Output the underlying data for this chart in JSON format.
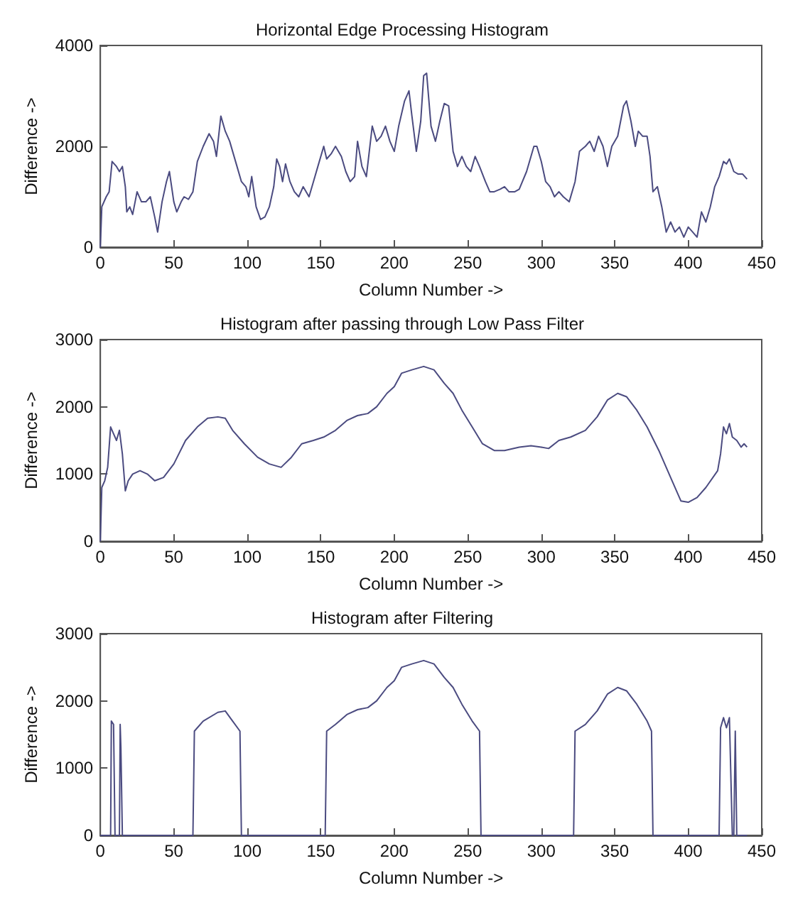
{
  "chart_data": [
    {
      "type": "line",
      "title": "Horizontal Edge Processing Histogram",
      "xlabel": "Column Number ->",
      "ylabel": "Difference ->",
      "grid": false,
      "marker": "none",
      "line_style": "solid",
      "xlim": [
        0,
        450
      ],
      "xticks": [
        0,
        50,
        100,
        150,
        200,
        250,
        300,
        350,
        400,
        450
      ],
      "ylim": [
        0,
        4000
      ],
      "yticks": [
        0,
        2000,
        4000
      ],
      "series": [
        {
          "color": "#4b4b80",
          "x": [
            0,
            1,
            4,
            6,
            8,
            11,
            13,
            15,
            17,
            18,
            20,
            22,
            25,
            28,
            31,
            34,
            37,
            39,
            42,
            45,
            47,
            50,
            52,
            55,
            57,
            60,
            63,
            66,
            70,
            74,
            77,
            79,
            82,
            85,
            88,
            90,
            93,
            96,
            99,
            101,
            103,
            106,
            109,
            112,
            115,
            118,
            120,
            122,
            124,
            126,
            129,
            132,
            135,
            138,
            142,
            145,
            148,
            152,
            154,
            157,
            160,
            164,
            167,
            170,
            173,
            175,
            178,
            181,
            185,
            188,
            191,
            194,
            197,
            200,
            203,
            207,
            210,
            212,
            215,
            218,
            220,
            222,
            225,
            228,
            231,
            234,
            237,
            240,
            243,
            246,
            249,
            252,
            255,
            258,
            262,
            265,
            268,
            272,
            275,
            278,
            282,
            285,
            290,
            295,
            297,
            300,
            303,
            306,
            309,
            312,
            315,
            319,
            323,
            326,
            330,
            333,
            336,
            339,
            342,
            345,
            348,
            352,
            356,
            358,
            361,
            364,
            366,
            369,
            372,
            374,
            376,
            379,
            382,
            385,
            388,
            391,
            394,
            397,
            400,
            403,
            406,
            409,
            412,
            415,
            418,
            421,
            424,
            426,
            428,
            431,
            434,
            437,
            440
          ],
          "values": [
            0,
            800,
            1000,
            1100,
            1700,
            1600,
            1500,
            1600,
            1200,
            700,
            800,
            650,
            1100,
            900,
            900,
            1000,
            600,
            300,
            900,
            1300,
            1500,
            900,
            700,
            900,
            1000,
            950,
            1100,
            1700,
            2000,
            2250,
            2100,
            1800,
            2600,
            2300,
            2100,
            1900,
            1600,
            1300,
            1200,
            1000,
            1400,
            800,
            550,
            600,
            800,
            1200,
            1750,
            1600,
            1300,
            1650,
            1300,
            1100,
            1000,
            1200,
            1000,
            1300,
            1600,
            2000,
            1750,
            1850,
            2000,
            1800,
            1500,
            1300,
            1400,
            2100,
            1600,
            1400,
            2400,
            2100,
            2200,
            2400,
            2100,
            1900,
            2400,
            2900,
            3100,
            2600,
            1900,
            2500,
            3400,
            3450,
            2400,
            2100,
            2500,
            2850,
            2800,
            1900,
            1600,
            1800,
            1600,
            1500,
            1800,
            1600,
            1300,
            1100,
            1100,
            1150,
            1200,
            1100,
            1100,
            1150,
            1500,
            2000,
            2000,
            1700,
            1300,
            1200,
            1000,
            1100,
            1000,
            900,
            1300,
            1900,
            2000,
            2100,
            1900,
            2200,
            2000,
            1600,
            2000,
            2200,
            2800,
            2900,
            2500,
            2000,
            2300,
            2200,
            2200,
            1800,
            1100,
            1200,
            800,
            300,
            500,
            300,
            400,
            200,
            400,
            300,
            200,
            700,
            500,
            800,
            1200,
            1400,
            1700,
            1650,
            1750,
            1500,
            1450,
            1450,
            1350
          ]
        }
      ]
    },
    {
      "type": "line",
      "title": "Histogram after passing through Low Pass Filter",
      "xlabel": "Column Number ->",
      "ylabel": "Difference ->",
      "grid": false,
      "marker": "none",
      "line_style": "solid",
      "xlim": [
        0,
        450
      ],
      "xticks": [
        0,
        50,
        100,
        150,
        200,
        250,
        300,
        350,
        400,
        450
      ],
      "ylim": [
        0,
        3000
      ],
      "yticks": [
        0,
        1000,
        2000,
        3000
      ],
      "series": [
        {
          "color": "#4b4b80",
          "x": [
            0,
            1,
            3,
            5,
            7,
            9,
            11,
            13,
            15,
            17,
            19,
            22,
            27,
            32,
            37,
            43,
            50,
            58,
            66,
            73,
            80,
            85,
            90,
            98,
            107,
            115,
            123,
            130,
            137,
            145,
            152,
            160,
            168,
            175,
            182,
            188,
            195,
            200,
            205,
            212,
            220,
            227,
            234,
            240,
            246,
            253,
            260,
            268,
            275,
            285,
            293,
            300,
            305,
            312,
            320,
            330,
            338,
            345,
            352,
            358,
            365,
            372,
            380,
            388,
            395,
            400,
            406,
            412,
            420,
            422,
            424,
            426,
            428,
            430,
            433,
            436,
            438,
            440
          ],
          "values": [
            0,
            800,
            900,
            1100,
            1700,
            1600,
            1500,
            1650,
            1300,
            750,
            900,
            1000,
            1050,
            1000,
            900,
            950,
            1150,
            1500,
            1700,
            1830,
            1850,
            1830,
            1650,
            1450,
            1250,
            1150,
            1100,
            1250,
            1450,
            1500,
            1550,
            1650,
            1800,
            1870,
            1900,
            2000,
            2200,
            2300,
            2500,
            2550,
            2600,
            2550,
            2350,
            2200,
            1950,
            1700,
            1450,
            1350,
            1350,
            1400,
            1420,
            1400,
            1380,
            1500,
            1550,
            1650,
            1850,
            2100,
            2200,
            2150,
            1950,
            1700,
            1350,
            950,
            600,
            580,
            650,
            800,
            1050,
            1300,
            1700,
            1600,
            1750,
            1550,
            1500,
            1400,
            1450,
            1400
          ]
        }
      ]
    },
    {
      "type": "line",
      "title": "Histogram after Filtering",
      "xlabel": "Column Number ->",
      "ylabel": "Difference ->",
      "grid": false,
      "marker": "none",
      "line_style": "solid",
      "xlim": [
        0,
        450
      ],
      "xticks": [
        0,
        50,
        100,
        150,
        200,
        250,
        300,
        350,
        400,
        450
      ],
      "ylim": [
        0,
        3000
      ],
      "yticks": [
        0,
        1000,
        2000,
        3000
      ],
      "series": [
        {
          "color": "#4b4b80",
          "x": [
            0,
            7,
            7.5,
            9,
            10,
            13,
            13.5,
            14,
            15,
            63,
            64,
            70,
            80,
            85,
            90,
            95,
            96,
            153,
            154,
            160,
            168,
            175,
            182,
            188,
            195,
            200,
            205,
            212,
            220,
            227,
            234,
            240,
            246,
            253,
            258,
            259,
            322,
            323,
            330,
            338,
            345,
            352,
            358,
            365,
            372,
            375,
            376,
            421,
            422,
            424,
            426,
            428,
            430,
            431,
            432,
            433,
            440
          ],
          "values": [
            0,
            0,
            1700,
            1650,
            0,
            0,
            1650,
            1300,
            0,
            0,
            1550,
            1700,
            1830,
            1850,
            1700,
            1550,
            0,
            0,
            1550,
            1650,
            1800,
            1870,
            1900,
            2000,
            2200,
            2300,
            2500,
            2550,
            2600,
            2550,
            2350,
            2200,
            1950,
            1700,
            1550,
            0,
            0,
            1550,
            1650,
            1850,
            2100,
            2200,
            2150,
            1950,
            1700,
            1550,
            0,
            0,
            1600,
            1750,
            1600,
            1750,
            0,
            0,
            1550,
            0,
            0
          ]
        }
      ]
    }
  ]
}
